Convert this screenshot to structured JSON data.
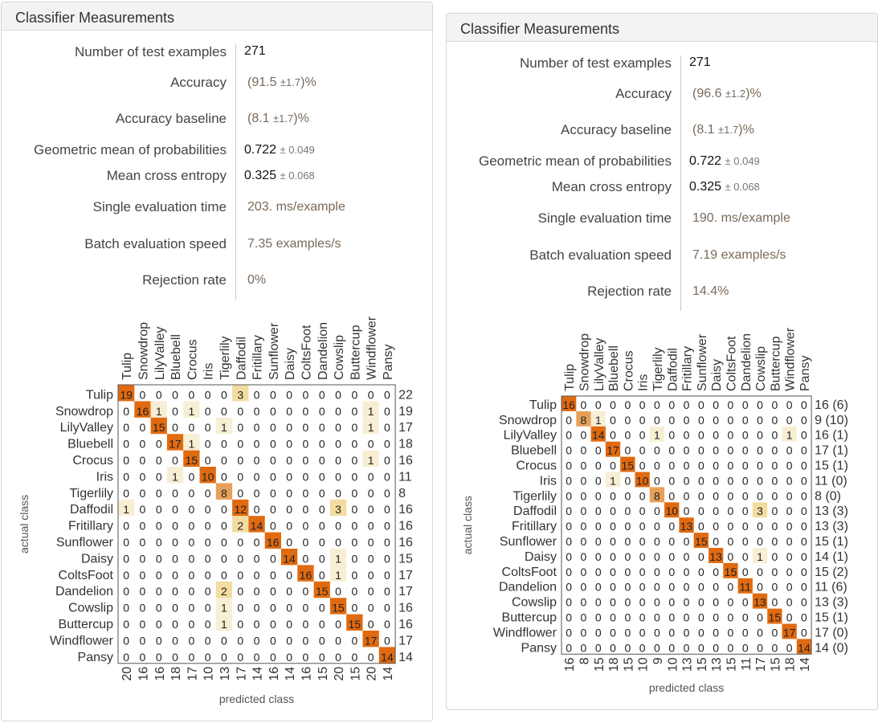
{
  "classes": [
    "Tulip",
    "Snowdrop",
    "LilyValley",
    "Bluebell",
    "Crocus",
    "Iris",
    "Tigerlily",
    "Daffodil",
    "Fritillary",
    "Sunflower",
    "Daisy",
    "ColtsFoot",
    "Dandelion",
    "Cowslip",
    "Buttercup",
    "Windflower",
    "Pansy"
  ],
  "colors": {
    "heat_high": "#e06a10",
    "heat_mid": "#e6a05a",
    "heat_low": "#f3dca0",
    "heat_faint": "#f8eed4",
    "grid": "#555555"
  },
  "panels": [
    {
      "title": "Classifier Measurements",
      "metrics": [
        {
          "label": "Number of test examples",
          "value": "271",
          "unc": ""
        },
        {
          "label": "Accuracy",
          "value": "(91.5",
          "unc": "±1.7",
          "suffix": ")%"
        },
        {
          "label": "Accuracy baseline",
          "value": "(8.1",
          "unc": "±1.7",
          "suffix": ")%"
        },
        {
          "label": "Geometric mean of probabilities",
          "value": "0.722",
          "unc": "± 0.049"
        },
        {
          "label": "Mean cross entropy",
          "value": "0.325",
          "unc": "± 0.068"
        },
        {
          "label": "Single evaluation time",
          "value": "203. ms/example",
          "unc": ""
        },
        {
          "label": "Batch evaluation speed",
          "value": "7.35 examples/s",
          "unc": ""
        },
        {
          "label": "Rejection rate",
          "value": "0%",
          "unc": ""
        }
      ],
      "matrix": {
        "xlabel": "predicted class",
        "ylabel": "actual class",
        "values": [
          [
            19,
            0,
            0,
            0,
            0,
            0,
            0,
            3,
            0,
            0,
            0,
            0,
            0,
            0,
            0,
            0,
            0
          ],
          [
            0,
            16,
            1,
            0,
            1,
            0,
            0,
            0,
            0,
            0,
            0,
            0,
            0,
            0,
            0,
            1,
            0
          ],
          [
            0,
            0,
            15,
            0,
            0,
            0,
            1,
            0,
            0,
            0,
            0,
            0,
            0,
            0,
            0,
            1,
            0
          ],
          [
            0,
            0,
            0,
            17,
            1,
            0,
            0,
            0,
            0,
            0,
            0,
            0,
            0,
            0,
            0,
            0,
            0
          ],
          [
            0,
            0,
            0,
            0,
            15,
            0,
            0,
            0,
            0,
            0,
            0,
            0,
            0,
            0,
            0,
            1,
            0
          ],
          [
            0,
            0,
            0,
            1,
            0,
            10,
            0,
            0,
            0,
            0,
            0,
            0,
            0,
            0,
            0,
            0,
            0
          ],
          [
            0,
            0,
            0,
            0,
            0,
            0,
            8,
            0,
            0,
            0,
            0,
            0,
            0,
            0,
            0,
            0,
            0
          ],
          [
            1,
            0,
            0,
            0,
            0,
            0,
            0,
            12,
            0,
            0,
            0,
            0,
            0,
            3,
            0,
            0,
            0
          ],
          [
            0,
            0,
            0,
            0,
            0,
            0,
            0,
            2,
            14,
            0,
            0,
            0,
            0,
            0,
            0,
            0,
            0
          ],
          [
            0,
            0,
            0,
            0,
            0,
            0,
            0,
            0,
            0,
            16,
            0,
            0,
            0,
            0,
            0,
            0,
            0
          ],
          [
            0,
            0,
            0,
            0,
            0,
            0,
            0,
            0,
            0,
            0,
            14,
            0,
            0,
            1,
            0,
            0,
            0
          ],
          [
            0,
            0,
            0,
            0,
            0,
            0,
            0,
            0,
            0,
            0,
            0,
            16,
            0,
            1,
            0,
            0,
            0
          ],
          [
            0,
            0,
            0,
            0,
            0,
            0,
            2,
            0,
            0,
            0,
            0,
            0,
            15,
            0,
            0,
            0,
            0
          ],
          [
            0,
            0,
            0,
            0,
            0,
            0,
            1,
            0,
            0,
            0,
            0,
            0,
            0,
            15,
            0,
            0,
            0
          ],
          [
            0,
            0,
            0,
            0,
            0,
            0,
            1,
            0,
            0,
            0,
            0,
            0,
            0,
            0,
            15,
            0,
            0
          ],
          [
            0,
            0,
            0,
            0,
            0,
            0,
            0,
            0,
            0,
            0,
            0,
            0,
            0,
            0,
            0,
            17,
            0
          ],
          [
            0,
            0,
            0,
            0,
            0,
            0,
            0,
            0,
            0,
            0,
            0,
            0,
            0,
            0,
            0,
            0,
            14
          ]
        ],
        "row_totals": [
          "22",
          "19",
          "17",
          "18",
          "16",
          "11",
          "8",
          "16",
          "16",
          "16",
          "15",
          "17",
          "17",
          "16",
          "16",
          "17",
          "14"
        ],
        "col_totals": [
          "20",
          "16",
          "16",
          "18",
          "17",
          "10",
          "13",
          "17",
          "14",
          "16",
          "14",
          "16",
          "15",
          "20",
          "15",
          "20",
          "14"
        ]
      }
    },
    {
      "title": "Classifier Measurements",
      "metrics": [
        {
          "label": "Number of test examples",
          "value": "271",
          "unc": ""
        },
        {
          "label": "Accuracy",
          "value": "(96.6",
          "unc": "±1.2",
          "suffix": ")%"
        },
        {
          "label": "Accuracy baseline",
          "value": "(8.1",
          "unc": "±1.7",
          "suffix": ")%"
        },
        {
          "label": "Geometric mean of probabilities",
          "value": "0.722",
          "unc": "± 0.049"
        },
        {
          "label": "Mean cross entropy",
          "value": "0.325",
          "unc": "± 0.068"
        },
        {
          "label": "Single evaluation time",
          "value": "190. ms/example",
          "unc": ""
        },
        {
          "label": "Batch evaluation speed",
          "value": "7.19 examples/s",
          "unc": ""
        },
        {
          "label": "Rejection rate",
          "value": "14.4%",
          "unc": ""
        }
      ],
      "matrix": {
        "xlabel": "predicted class",
        "ylabel": "actual class",
        "values": [
          [
            16,
            0,
            0,
            0,
            0,
            0,
            0,
            0,
            0,
            0,
            0,
            0,
            0,
            0,
            0,
            0,
            0
          ],
          [
            0,
            8,
            1,
            0,
            0,
            0,
            0,
            0,
            0,
            0,
            0,
            0,
            0,
            0,
            0,
            0,
            0
          ],
          [
            0,
            0,
            14,
            0,
            0,
            0,
            1,
            0,
            0,
            0,
            0,
            0,
            0,
            0,
            0,
            1,
            0
          ],
          [
            0,
            0,
            0,
            17,
            0,
            0,
            0,
            0,
            0,
            0,
            0,
            0,
            0,
            0,
            0,
            0,
            0
          ],
          [
            0,
            0,
            0,
            0,
            15,
            0,
            0,
            0,
            0,
            0,
            0,
            0,
            0,
            0,
            0,
            0,
            0
          ],
          [
            0,
            0,
            0,
            1,
            0,
            10,
            0,
            0,
            0,
            0,
            0,
            0,
            0,
            0,
            0,
            0,
            0
          ],
          [
            0,
            0,
            0,
            0,
            0,
            0,
            8,
            0,
            0,
            0,
            0,
            0,
            0,
            0,
            0,
            0,
            0
          ],
          [
            0,
            0,
            0,
            0,
            0,
            0,
            0,
            10,
            0,
            0,
            0,
            0,
            0,
            3,
            0,
            0,
            0
          ],
          [
            0,
            0,
            0,
            0,
            0,
            0,
            0,
            0,
            13,
            0,
            0,
            0,
            0,
            0,
            0,
            0,
            0
          ],
          [
            0,
            0,
            0,
            0,
            0,
            0,
            0,
            0,
            0,
            15,
            0,
            0,
            0,
            0,
            0,
            0,
            0
          ],
          [
            0,
            0,
            0,
            0,
            0,
            0,
            0,
            0,
            0,
            0,
            13,
            0,
            0,
            1,
            0,
            0,
            0
          ],
          [
            0,
            0,
            0,
            0,
            0,
            0,
            0,
            0,
            0,
            0,
            0,
            15,
            0,
            0,
            0,
            0,
            0
          ],
          [
            0,
            0,
            0,
            0,
            0,
            0,
            0,
            0,
            0,
            0,
            0,
            0,
            11,
            0,
            0,
            0,
            0
          ],
          [
            0,
            0,
            0,
            0,
            0,
            0,
            0,
            0,
            0,
            0,
            0,
            0,
            0,
            13,
            0,
            0,
            0
          ],
          [
            0,
            0,
            0,
            0,
            0,
            0,
            0,
            0,
            0,
            0,
            0,
            0,
            0,
            0,
            15,
            0,
            0
          ],
          [
            0,
            0,
            0,
            0,
            0,
            0,
            0,
            0,
            0,
            0,
            0,
            0,
            0,
            0,
            0,
            17,
            0
          ],
          [
            0,
            0,
            0,
            0,
            0,
            0,
            0,
            0,
            0,
            0,
            0,
            0,
            0,
            0,
            0,
            0,
            14
          ]
        ],
        "row_totals": [
          "16 (6)",
          "9 (10)",
          "16 (1)",
          "17 (1)",
          "15 (1)",
          "11 (0)",
          "8 (0)",
          "13 (3)",
          "13 (3)",
          "15 (1)",
          "14 (1)",
          "15 (2)",
          "11 (6)",
          "13 (3)",
          "15 (1)",
          "17 (0)",
          "14 (0)"
        ],
        "col_totals": [
          "16",
          "8",
          "15",
          "18",
          "15",
          "10",
          "9",
          "10",
          "13",
          "15",
          "13",
          "15",
          "11",
          "17",
          "15",
          "18",
          "14"
        ]
      }
    }
  ]
}
